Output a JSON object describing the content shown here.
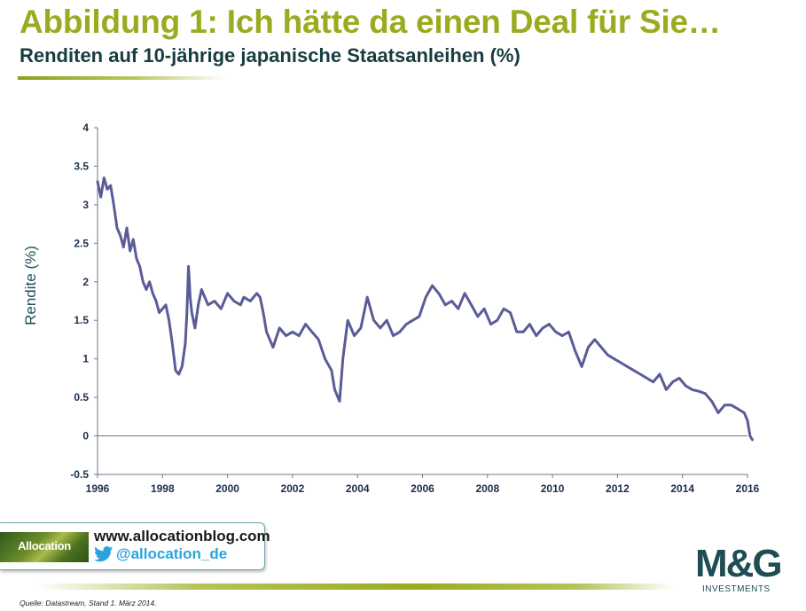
{
  "header": {
    "title": "Abbildung 1: Ich hätte da einen Deal für Sie…",
    "subtitle": "Renditen auf 10-jährige japanische Staatsanleihen (%)"
  },
  "colors": {
    "title": "#9aab1f",
    "subtitle": "#173d40",
    "series": "#5a5c98",
    "axis": "#6b7a8a",
    "tick_text": "#1a2f4d"
  },
  "chart_data": {
    "type": "line",
    "title": "Renditen auf 10-jährige japanische Staatsanleihen (%)",
    "xlabel": "",
    "ylabel": "Rendite (%)",
    "xlim": [
      1996,
      2016
    ],
    "ylim": [
      -0.5,
      4
    ],
    "x_ticks": [
      "1996",
      "1998",
      "2000",
      "2002",
      "2004",
      "2006",
      "2008",
      "2010",
      "2012",
      "2014",
      "2016"
    ],
    "y_ticks": [
      "4",
      "3.5",
      "3",
      "2.5",
      "2",
      "1.5",
      "1",
      "0.5",
      "0",
      "-0.5"
    ],
    "grid": false,
    "legend": "none",
    "series": [
      {
        "x": [
          1996.0,
          1996.1,
          1996.2,
          1996.3,
          1996.4,
          1996.5,
          1996.6,
          1996.7,
          1996.8,
          1996.9,
          1997.0,
          1997.1,
          1997.2,
          1997.3,
          1997.4,
          1997.5,
          1997.6,
          1997.7,
          1997.8,
          1997.9,
          1998.0,
          1998.1,
          1998.2,
          1998.3,
          1998.4,
          1998.5,
          1998.6,
          1998.7,
          1998.75,
          1998.8,
          1998.85,
          1998.9,
          1999.0,
          1999.1,
          1999.2,
          1999.4,
          1999.6,
          1999.8,
          2000.0,
          2000.2,
          2000.4,
          2000.5,
          2000.7,
          2000.9,
          2001.0,
          2001.1,
          2001.2,
          2001.4,
          2001.6,
          2001.8,
          2002.0,
          2002.2,
          2002.4,
          2002.6,
          2002.8,
          2003.0,
          2003.2,
          2003.3,
          2003.45,
          2003.55,
          2003.7,
          2003.9,
          2004.1,
          2004.3,
          2004.5,
          2004.7,
          2004.9,
          2005.1,
          2005.3,
          2005.5,
          2005.7,
          2005.9,
          2006.1,
          2006.3,
          2006.5,
          2006.7,
          2006.9,
          2007.1,
          2007.3,
          2007.5,
          2007.7,
          2007.9,
          2008.1,
          2008.3,
          2008.5,
          2008.7,
          2008.9,
          2009.1,
          2009.3,
          2009.5,
          2009.7,
          2009.9,
          2010.1,
          2010.3,
          2010.5,
          2010.7,
          2010.9,
          2011.1,
          2011.3,
          2011.5,
          2011.7,
          2011.9,
          2012.1,
          2012.3,
          2012.5,
          2012.7,
          2012.9,
          2013.1,
          2013.3,
          2013.5,
          2013.7,
          2013.9,
          2014.1,
          2014.3,
          2014.5,
          2014.7,
          2014.9,
          2015.1,
          2015.3,
          2015.5,
          2015.7,
          2015.9,
          2016.0,
          2016.08,
          2016.15
        ],
        "values": [
          3.3,
          3.1,
          3.35,
          3.2,
          3.25,
          3.0,
          2.7,
          2.6,
          2.45,
          2.7,
          2.4,
          2.55,
          2.3,
          2.2,
          2.0,
          1.9,
          2.0,
          1.85,
          1.75,
          1.6,
          1.65,
          1.7,
          1.5,
          1.2,
          0.85,
          0.8,
          0.9,
          1.2,
          1.6,
          2.2,
          1.8,
          1.6,
          1.4,
          1.7,
          1.9,
          1.7,
          1.75,
          1.65,
          1.85,
          1.75,
          1.7,
          1.8,
          1.75,
          1.85,
          1.8,
          1.6,
          1.35,
          1.15,
          1.4,
          1.3,
          1.35,
          1.3,
          1.45,
          1.35,
          1.25,
          1.0,
          0.85,
          0.6,
          0.45,
          1.0,
          1.5,
          1.3,
          1.4,
          1.8,
          1.5,
          1.4,
          1.5,
          1.3,
          1.35,
          1.45,
          1.5,
          1.55,
          1.8,
          1.95,
          1.85,
          1.7,
          1.75,
          1.65,
          1.85,
          1.7,
          1.55,
          1.65,
          1.45,
          1.5,
          1.65,
          1.6,
          1.35,
          1.35,
          1.45,
          1.3,
          1.4,
          1.45,
          1.35,
          1.3,
          1.35,
          1.1,
          0.9,
          1.15,
          1.25,
          1.15,
          1.05,
          1.0,
          0.95,
          0.9,
          0.85,
          0.8,
          0.75,
          0.7,
          0.8,
          0.6,
          0.7,
          0.75,
          0.65,
          0.6,
          0.58,
          0.55,
          0.45,
          0.3,
          0.4,
          0.4,
          0.35,
          0.3,
          0.2,
          0.0,
          -0.05
        ]
      }
    ]
  },
  "branding": {
    "blog_logo_text": "Allocation",
    "blog_url": "www.allocationblog.com",
    "twitter_handle": "@allocation_de",
    "company_logo_main": "M&G",
    "company_logo_sub": "INVESTMENTS"
  },
  "footer": {
    "source": "Quelle: Datastream, Stand 1. März 2014."
  },
  "icons": [
    "twitter-bird-icon",
    "allocation-logo",
    "mg-investments-logo"
  ]
}
